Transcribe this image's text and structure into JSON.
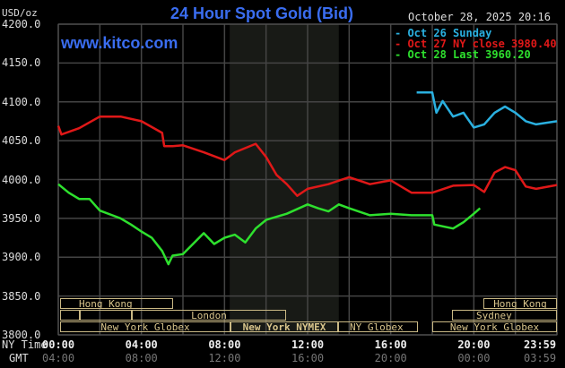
{
  "header": {
    "unit": "USD/oz",
    "title": "24 Hour Spot Gold (Bid)",
    "site": "www.kitco.com",
    "datetime": "October 28, 2025 20:16"
  },
  "legend": [
    {
      "label": "- Oct 26 Sunday",
      "color": "#2ab0e0"
    },
    {
      "label": "- Oct 27 NY close 3980.40",
      "color": "#e01818"
    },
    {
      "label": "- Oct 28 Last 3960.20",
      "color": "#2ee02e"
    }
  ],
  "axis": {
    "ny_label": "NY Time",
    "gmt_label": "GMT",
    "ny_ticks": [
      "00:00",
      "04:00",
      "08:00",
      "12:00",
      "16:00",
      "20:00",
      "23:59"
    ],
    "gmt_ticks": [
      "04:00",
      "08:00",
      "12:00",
      "16:00",
      "20:00",
      "00:00",
      "03:59"
    ],
    "y_ticks": [
      "4200.0",
      "4150.0",
      "4100.0",
      "4050.0",
      "4000.0",
      "3950.0",
      "3900.0",
      "3850.0",
      "3800.0"
    ]
  },
  "sessions": {
    "hong_kong": "Hong Kong",
    "london": "London",
    "ny_globex": "New York Globex",
    "ny_nymex": "New York NYMEX",
    "ny_globex_short": "NY Globex",
    "sydney": "Sydney"
  },
  "chart_data": {
    "type": "line",
    "title": "24 Hour Spot Gold (Bid)",
    "xlabel": "NY Time (hours)",
    "ylabel": "USD/oz",
    "xlim": [
      0,
      24
    ],
    "ylim": [
      3800,
      4200
    ],
    "grid": true,
    "legend_position": "top-right",
    "highlight_hours": [
      8.25,
      13.5
    ],
    "series": [
      {
        "name": "Oct 26 Sunday",
        "color": "#2ab0e0",
        "x": [
          17.25,
          18,
          18.2,
          18.5,
          19,
          19.5,
          20,
          20.5,
          21,
          21.5,
          22,
          22.5,
          23,
          24
        ],
        "y": [
          4112,
          4112,
          4086,
          4101,
          4081,
          4086,
          4067,
          4071,
          4086,
          4094,
          4086,
          4075,
          4071,
          4075
        ]
      },
      {
        "name": "Oct 27 NY close 3980.40",
        "color": "#e01818",
        "x": [
          0,
          0.15,
          1,
          2,
          3,
          4,
          5,
          5.1,
          5.5,
          6,
          7,
          8,
          8.5,
          9.5,
          10,
          10.5,
          11,
          11.5,
          12,
          13,
          14,
          15,
          16,
          17,
          18,
          19,
          20,
          20.5,
          21,
          21.5,
          22,
          22.5,
          23,
          24
        ],
        "y": [
          4069,
          4058,
          4066,
          4081,
          4081,
          4075,
          4060,
          4043,
          4043,
          4044,
          4035,
          4025,
          4035,
          4046,
          4029,
          4006,
          3994,
          3979,
          3988,
          3994,
          4003,
          3994,
          3999,
          3983,
          3983,
          3992,
          3993,
          3984,
          4009,
          4016,
          4012,
          3991,
          3988,
          3993
        ]
      },
      {
        "name": "Oct 28 Last 3960.20",
        "color": "#2ee02e",
        "x": [
          0,
          0.5,
          1,
          1.5,
          2,
          3,
          3.5,
          4,
          4.5,
          5,
          5.3,
          5.5,
          6,
          7,
          7.5,
          8,
          8.5,
          9,
          9.5,
          10,
          11,
          12,
          12.5,
          13,
          13.5,
          14,
          15,
          16,
          17,
          18,
          18.1,
          19,
          19.5,
          20,
          20.3
        ],
        "y": [
          3994,
          3983,
          3975,
          3975,
          3960,
          3950,
          3942,
          3933,
          3925,
          3908,
          3891,
          3902,
          3904,
          3931,
          3917,
          3925,
          3929,
          3919,
          3937,
          3948,
          3956,
          3968,
          3963,
          3959,
          3968,
          3963,
          3954,
          3956,
          3954,
          3954,
          3942,
          3937,
          3945,
          3956,
          3963
        ]
      }
    ]
  }
}
